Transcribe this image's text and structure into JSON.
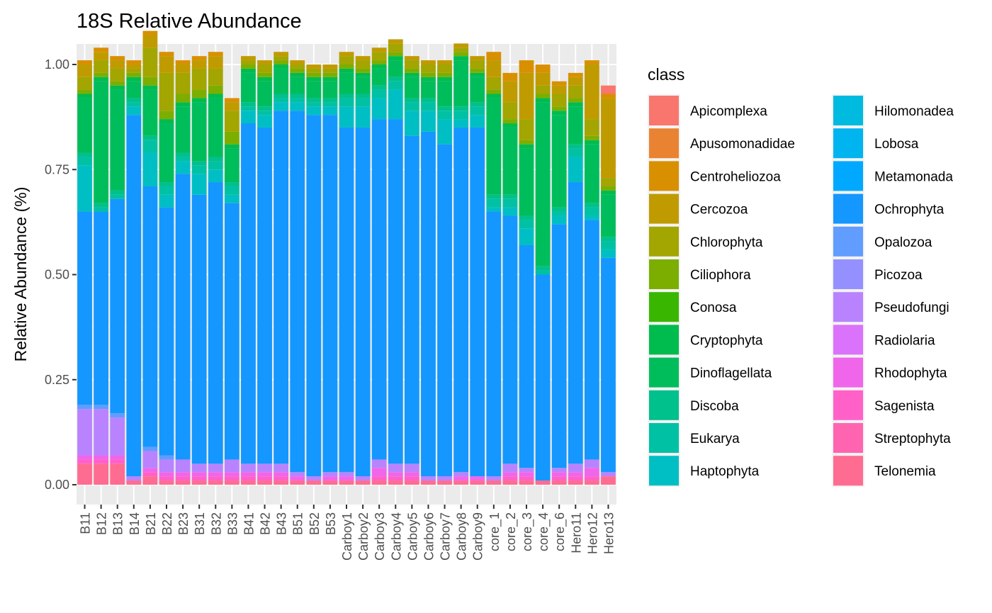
{
  "chart_data": {
    "type": "bar",
    "stacked": true,
    "title": "18S Relative Abundance",
    "xlabel": "",
    "ylabel": "Relative Abundance (%)",
    "ylim": [
      0,
      1
    ],
    "yticks": [
      "0.00",
      "0.25",
      "0.50",
      "0.75",
      "1.00"
    ],
    "grid": true,
    "legend_position": "right",
    "legend_title": "class",
    "categories": [
      "B11",
      "B12",
      "B13",
      "B14",
      "B21",
      "B22",
      "B23",
      "B31",
      "B32",
      "B33",
      "B41",
      "B42",
      "B43",
      "B51",
      "B52",
      "B53",
      "Carboy1",
      "Carboy2",
      "Carboy3",
      "Carboy4",
      "Carboy5",
      "Carboy6",
      "Carboy7",
      "Carboy8",
      "Carboy9",
      "core_1",
      "core_2",
      "core_3",
      "core_4",
      "core_6",
      "Hero11",
      "Hero12",
      "Hero13"
    ],
    "series": [
      {
        "name": "Apicomplexa",
        "color": "#F8766D",
        "values": [
          0,
          0,
          0,
          0,
          0,
          0,
          0,
          0,
          0,
          0,
          0,
          0,
          0,
          0,
          0,
          0,
          0,
          0,
          0,
          0,
          0,
          0,
          0,
          0,
          0,
          0,
          0,
          0,
          0,
          0,
          0,
          0,
          0.02
        ]
      },
      {
        "name": "Apusomonadidae",
        "color": "#EA8331",
        "values": [
          0,
          0,
          0,
          0,
          0,
          0,
          0,
          0,
          0,
          0,
          0,
          0,
          0,
          0,
          0,
          0,
          0,
          0,
          0,
          0,
          0,
          0,
          0,
          0,
          0,
          0,
          0,
          0,
          0,
          0,
          0,
          0,
          0
        ]
      },
      {
        "name": "Centroheliozoa",
        "color": "#D89000",
        "values": [
          0.01,
          0.01,
          0.01,
          0.01,
          0.01,
          0.01,
          0.01,
          0.01,
          0.01,
          0.01,
          0,
          0,
          0,
          0,
          0,
          0,
          0,
          0,
          0,
          0,
          0,
          0,
          0,
          0,
          0,
          0.02,
          0.02,
          0.03,
          0.02,
          0.01,
          0.01,
          0.01,
          0.01
        ]
      },
      {
        "name": "Cercozoa",
        "color": "#C09B00",
        "values": [
          0.03,
          0.02,
          0.02,
          0.01,
          0.03,
          0.04,
          0.02,
          0.02,
          0.03,
          0.02,
          0.01,
          0.01,
          0.01,
          0.01,
          0.01,
          0.01,
          0.01,
          0.01,
          0.01,
          0.01,
          0.01,
          0.01,
          0.01,
          0.01,
          0.01,
          0.04,
          0.05,
          0.11,
          0.03,
          0.02,
          0.02,
          0.13,
          0.19
        ]
      },
      {
        "name": "Chlorophyta",
        "color": "#A3A500",
        "values": [
          0.03,
          0.03,
          0.03,
          0.01,
          0.07,
          0.09,
          0.05,
          0.05,
          0.04,
          0.05,
          0.01,
          0.02,
          0.01,
          0.01,
          0.01,
          0.01,
          0.02,
          0.02,
          0.02,
          0.02,
          0.02,
          0.02,
          0.02,
          0.01,
          0.02,
          0.03,
          0.04,
          0.05,
          0.02,
          0.03,
          0.03,
          0.04,
          0.02
        ]
      },
      {
        "name": "Ciliophora",
        "color": "#7CAE00",
        "values": [
          0.01,
          0.01,
          0.01,
          0.01,
          0.02,
          0.02,
          0.02,
          0.02,
          0.02,
          0.03,
          0.01,
          0.01,
          0.01,
          0.01,
          0.01,
          0.01,
          0.01,
          0.01,
          0.01,
          0.01,
          0.01,
          0.01,
          0.01,
          0.01,
          0.01,
          0.01,
          0.01,
          0.01,
          0.01,
          0.01,
          0.01,
          0.01,
          0.01
        ]
      },
      {
        "name": "Conosa",
        "color": "#39B600",
        "values": [
          0,
          0,
          0,
          0,
          0,
          0,
          0,
          0,
          0,
          0,
          0,
          0,
          0,
          0,
          0,
          0,
          0,
          0,
          0,
          0,
          0,
          0,
          0,
          0,
          0,
          0,
          0,
          0,
          0,
          0,
          0,
          0,
          0
        ]
      },
      {
        "name": "Cryptophyta",
        "color": "#00BB4E",
        "values": [
          0.01,
          0.01,
          0.01,
          0.01,
          0.01,
          0.01,
          0.01,
          0.01,
          0.01,
          0.01,
          0.01,
          0.01,
          0.01,
          0.01,
          0.01,
          0.01,
          0.01,
          0.01,
          0.01,
          0.01,
          0.01,
          0.01,
          0.01,
          0.01,
          0.01,
          0.01,
          0.01,
          0.01,
          0.01,
          0.01,
          0.01,
          0.01,
          0.01
        ]
      },
      {
        "name": "Dinoflagellata",
        "color": "#00BD5C",
        "values": [
          0.13,
          0.29,
          0.24,
          0.04,
          0.11,
          0.14,
          0.11,
          0.14,
          0.14,
          0.08,
          0.07,
          0.06,
          0.06,
          0.04,
          0.04,
          0.04,
          0.05,
          0.04,
          0.04,
          0.04,
          0.05,
          0.04,
          0.06,
          0.11,
          0.06,
          0.23,
          0.16,
          0.16,
          0.39,
          0.22,
          0.09,
          0.14,
          0.1
        ]
      },
      {
        "name": "Discoba",
        "color": "#00C08B",
        "values": [
          0.01,
          0.01,
          0.01,
          0.01,
          0.01,
          0.01,
          0.01,
          0.01,
          0.01,
          0.01,
          0.01,
          0.01,
          0.01,
          0.01,
          0.01,
          0.01,
          0.01,
          0.01,
          0.01,
          0.01,
          0.01,
          0.01,
          0.01,
          0.01,
          0.01,
          0.01,
          0.01,
          0.01,
          0.01,
          0.01,
          0.01,
          0.01,
          0.01
        ]
      },
      {
        "name": "Eukarya",
        "color": "#00C1A3",
        "values": [
          0.02,
          0.01,
          0.01,
          0.01,
          0.03,
          0.02,
          0.01,
          0.02,
          0.02,
          0.02,
          0.01,
          0.01,
          0.01,
          0.01,
          0.01,
          0.01,
          0.02,
          0.02,
          0.02,
          0.02,
          0.02,
          0.02,
          0.02,
          0.02,
          0.02,
          0.02,
          0.02,
          0.02,
          0.01,
          0.01,
          0.02,
          0.02,
          0.02
        ]
      },
      {
        "name": "Haptophyta",
        "color": "#00BFC4",
        "values": [
          0.11,
          0.0,
          0.0,
          0.02,
          0.08,
          0.03,
          0.03,
          0.05,
          0.03,
          0.02,
          0.03,
          0.03,
          0.02,
          0.02,
          0.02,
          0.02,
          0.05,
          0.05,
          0.05,
          0.07,
          0.06,
          0.05,
          0.06,
          0.02,
          0.03,
          0.01,
          0.02,
          0.04,
          0.0,
          0.02,
          0.06,
          0.01,
          0.02
        ]
      },
      {
        "name": "Hilomonadea",
        "color": "#00BAE0",
        "values": [
          0,
          0,
          0,
          0,
          0,
          0,
          0,
          0,
          0,
          0,
          0,
          0,
          0,
          0,
          0,
          0,
          0,
          0,
          0,
          0,
          0,
          0,
          0,
          0,
          0,
          0,
          0,
          0,
          0,
          0,
          0,
          0,
          0
        ]
      },
      {
        "name": "Lobosa",
        "color": "#00B4EF",
        "values": [
          0,
          0,
          0,
          0,
          0,
          0,
          0,
          0,
          0,
          0,
          0,
          0,
          0,
          0,
          0,
          0,
          0,
          0,
          0,
          0,
          0,
          0,
          0,
          0,
          0,
          0,
          0,
          0,
          0,
          0,
          0,
          0,
          0
        ]
      },
      {
        "name": "Metamonada",
        "color": "#00A9FF",
        "values": [
          0,
          0,
          0,
          0,
          0,
          0,
          0,
          0,
          0,
          0,
          0,
          0,
          0,
          0,
          0,
          0,
          0,
          0,
          0,
          0,
          0,
          0,
          0,
          0,
          0,
          0,
          0,
          0,
          0,
          0,
          0,
          0,
          0
        ]
      },
      {
        "name": "Ochrophyta",
        "color": "#1497FF",
        "values": [
          0.46,
          0.46,
          0.51,
          0.86,
          0.62,
          0.59,
          0.68,
          0.64,
          0.67,
          0.61,
          0.81,
          0.8,
          0.84,
          0.86,
          0.86,
          0.85,
          0.82,
          0.83,
          0.81,
          0.82,
          0.78,
          0.82,
          0.79,
          0.82,
          0.83,
          0.63,
          0.59,
          0.53,
          0.49,
          0.58,
          0.67,
          0.57,
          0.51
        ]
      },
      {
        "name": "Opalozoa",
        "color": "#619CFF",
        "values": [
          0.01,
          0.01,
          0.01,
          0,
          0.01,
          0.01,
          0,
          0,
          0,
          0,
          0,
          0,
          0,
          0,
          0,
          0,
          0,
          0,
          0,
          0,
          0,
          0,
          0,
          0,
          0,
          0,
          0,
          0,
          0,
          0,
          0,
          0,
          0
        ]
      },
      {
        "name": "Picozoa",
        "color": "#9590FF",
        "values": [
          0,
          0,
          0,
          0,
          0,
          0,
          0,
          0,
          0,
          0,
          0,
          0,
          0,
          0,
          0,
          0,
          0,
          0,
          0,
          0,
          0,
          0,
          0,
          0,
          0,
          0,
          0,
          0,
          0,
          0,
          0,
          0,
          0
        ]
      },
      {
        "name": "Pseudofungi",
        "color": "#B983FF",
        "values": [
          0.11,
          0.11,
          0.09,
          0.01,
          0.04,
          0.03,
          0.03,
          0.02,
          0.02,
          0.03,
          0.02,
          0.02,
          0.02,
          0.01,
          0.01,
          0.01,
          0.01,
          0.01,
          0.02,
          0.02,
          0.02,
          0.01,
          0.01,
          0.01,
          0,
          0.01,
          0.02,
          0.01,
          0,
          0.01,
          0.02,
          0.02,
          0.01
        ]
      },
      {
        "name": "Radiolaria",
        "color": "#DB72FB",
        "values": [
          0,
          0,
          0,
          0,
          0,
          0,
          0,
          0,
          0,
          0,
          0,
          0,
          0,
          0,
          0,
          0,
          0,
          0,
          0,
          0,
          0,
          0,
          0,
          0,
          0,
          0,
          0,
          0,
          0,
          0,
          0,
          0,
          0
        ]
      },
      {
        "name": "Rhodophyta",
        "color": "#F066EA",
        "values": [
          0.01,
          0.01,
          0.01,
          0,
          0.01,
          0.01,
          0.01,
          0.01,
          0.01,
          0.01,
          0.01,
          0.01,
          0.01,
          0.01,
          0,
          0.01,
          0.01,
          0,
          0.02,
          0.01,
          0.01,
          0,
          0,
          0.01,
          0.01,
          0,
          0.01,
          0.01,
          0,
          0.01,
          0.01,
          0.02,
          0
        ]
      },
      {
        "name": "Sagenista",
        "color": "#FF61C9",
        "values": [
          0.01,
          0.01,
          0.01,
          0,
          0.01,
          0.01,
          0.01,
          0.01,
          0.01,
          0.01,
          0.01,
          0.01,
          0.01,
          0,
          0,
          0,
          0,
          0,
          0.01,
          0.01,
          0.01,
          0,
          0,
          0,
          0,
          0,
          0.01,
          0.01,
          0,
          0.01,
          0.01,
          0.01,
          0
        ]
      },
      {
        "name": "Streptophyta",
        "color": "#FF64B0",
        "values": [
          0,
          0,
          0,
          0,
          0,
          0,
          0,
          0,
          0,
          0,
          0,
          0,
          0,
          0,
          0,
          0,
          0,
          0,
          0,
          0,
          0,
          0,
          0,
          0,
          0,
          0,
          0,
          0,
          0,
          0,
          0,
          0,
          0
        ]
      },
      {
        "name": "Telonemia",
        "color": "#FF6C91",
        "values": [
          0.05,
          0.05,
          0.05,
          0.01,
          0.02,
          0.01,
          0.01,
          0.01,
          0.01,
          0.01,
          0.01,
          0.01,
          0.01,
          0.01,
          0.01,
          0.01,
          0.01,
          0.01,
          0.01,
          0.01,
          0.01,
          0.01,
          0.01,
          0.01,
          0.01,
          0.01,
          0.01,
          0.01,
          0.01,
          0.01,
          0.01,
          0.01,
          0.02
        ]
      }
    ]
  }
}
